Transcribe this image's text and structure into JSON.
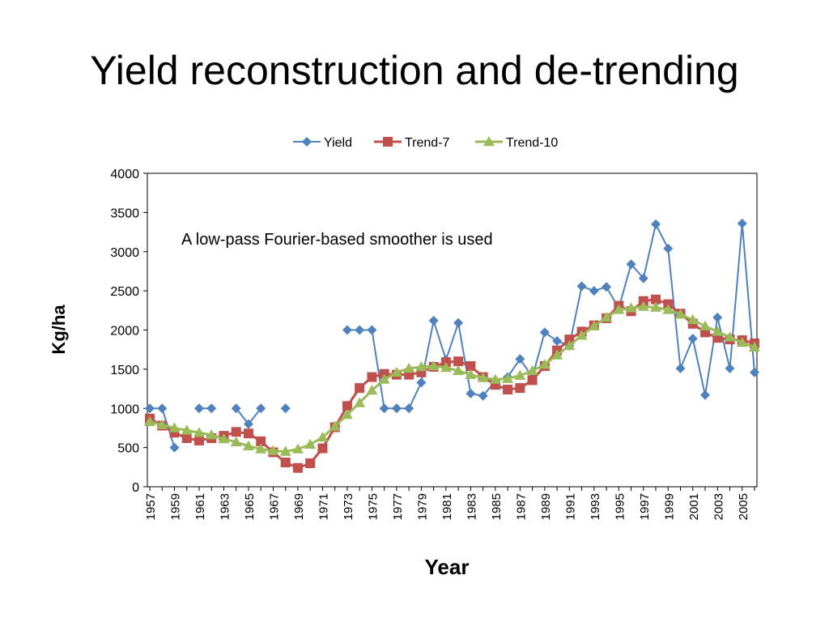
{
  "slide": {
    "title": "Yield reconstruction and de-trending"
  },
  "chart_data": {
    "type": "line",
    "xlabel": "Year",
    "ylabel": "Kg/ha",
    "annotation": "A low-pass Fourier-based smoother is used",
    "ylim": [
      0,
      4000
    ],
    "xlim": [
      1957,
      2006
    ],
    "yticks": [
      0,
      500,
      1000,
      1500,
      2000,
      2500,
      3000,
      3500,
      4000
    ],
    "xtick_labels": [
      "1957",
      "1959",
      "1961",
      "1963",
      "1965",
      "1967",
      "1969",
      "1971",
      "1973",
      "1975",
      "1977",
      "1979",
      "1981",
      "1983",
      "1985",
      "1987",
      "1989",
      "1991",
      "1993",
      "1995",
      "1997",
      "1999",
      "2001",
      "2003",
      "2005"
    ],
    "grid": false,
    "legend_position": "top",
    "series": [
      {
        "name": "Yield",
        "color": "#4f81bd",
        "marker": "diamond",
        "points": [
          [
            1957,
            1000
          ],
          [
            1958,
            1000
          ],
          [
            1959,
            500
          ],
          [
            1961,
            1000
          ],
          [
            1962,
            1000
          ],
          [
            1964,
            1000
          ],
          [
            1965,
            800
          ],
          [
            1966,
            1000
          ],
          [
            1968,
            1000
          ],
          [
            1973,
            2000
          ],
          [
            1974,
            2000
          ],
          [
            1975,
            2000
          ],
          [
            1976,
            1000
          ],
          [
            1977,
            1000
          ],
          [
            1978,
            1000
          ],
          [
            1979,
            1330
          ],
          [
            1980,
            2120
          ],
          [
            1981,
            1620
          ],
          [
            1982,
            2090
          ],
          [
            1983,
            1190
          ],
          [
            1984,
            1160
          ],
          [
            1985,
            1350
          ],
          [
            1986,
            1400
          ],
          [
            1987,
            1630
          ],
          [
            1988,
            1400
          ],
          [
            1989,
            1970
          ],
          [
            1990,
            1860
          ],
          [
            1991,
            1800
          ],
          [
            1992,
            2560
          ],
          [
            1993,
            2500
          ],
          [
            1994,
            2550
          ],
          [
            1995,
            2280
          ],
          [
            1996,
            2840
          ],
          [
            1997,
            2660
          ],
          [
            1998,
            3350
          ],
          [
            1999,
            3040
          ],
          [
            2000,
            1510
          ],
          [
            2001,
            1890
          ],
          [
            2002,
            1170
          ],
          [
            2003,
            2160
          ],
          [
            2004,
            1510
          ],
          [
            2005,
            3360
          ],
          [
            2006,
            1460
          ]
        ]
      },
      {
        "name": "Trend-7",
        "color": "#c0504d",
        "marker": "square",
        "points": [
          [
            1957,
            870
          ],
          [
            1958,
            780
          ],
          [
            1959,
            690
          ],
          [
            1960,
            620
          ],
          [
            1961,
            590
          ],
          [
            1962,
            620
          ],
          [
            1963,
            650
          ],
          [
            1964,
            700
          ],
          [
            1965,
            680
          ],
          [
            1966,
            580
          ],
          [
            1967,
            440
          ],
          [
            1968,
            310
          ],
          [
            1969,
            240
          ],
          [
            1970,
            300
          ],
          [
            1971,
            490
          ],
          [
            1972,
            760
          ],
          [
            1973,
            1030
          ],
          [
            1974,
            1260
          ],
          [
            1975,
            1400
          ],
          [
            1976,
            1440
          ],
          [
            1977,
            1430
          ],
          [
            1978,
            1430
          ],
          [
            1979,
            1460
          ],
          [
            1980,
            1530
          ],
          [
            1981,
            1590
          ],
          [
            1982,
            1600
          ],
          [
            1983,
            1540
          ],
          [
            1984,
            1400
          ],
          [
            1985,
            1300
          ],
          [
            1986,
            1240
          ],
          [
            1987,
            1260
          ],
          [
            1988,
            1360
          ],
          [
            1989,
            1540
          ],
          [
            1990,
            1740
          ],
          [
            1991,
            1880
          ],
          [
            1992,
            1980
          ],
          [
            1993,
            2060
          ],
          [
            1994,
            2150
          ],
          [
            1995,
            2310
          ],
          [
            1996,
            2240
          ],
          [
            1997,
            2370
          ],
          [
            1998,
            2390
          ],
          [
            1999,
            2330
          ],
          [
            2000,
            2210
          ],
          [
            2001,
            2080
          ],
          [
            2002,
            1970
          ],
          [
            2003,
            1900
          ],
          [
            2004,
            1880
          ],
          [
            2005,
            1870
          ],
          [
            2006,
            1830
          ]
        ]
      },
      {
        "name": "Trend-10",
        "color": "#9bbb59",
        "marker": "triangle",
        "points": [
          [
            1957,
            830
          ],
          [
            1958,
            790
          ],
          [
            1959,
            750
          ],
          [
            1960,
            720
          ],
          [
            1961,
            690
          ],
          [
            1962,
            660
          ],
          [
            1963,
            610
          ],
          [
            1964,
            570
          ],
          [
            1965,
            520
          ],
          [
            1966,
            480
          ],
          [
            1967,
            460
          ],
          [
            1968,
            450
          ],
          [
            1969,
            480
          ],
          [
            1970,
            540
          ],
          [
            1971,
            630
          ],
          [
            1972,
            770
          ],
          [
            1973,
            920
          ],
          [
            1974,
            1070
          ],
          [
            1975,
            1230
          ],
          [
            1976,
            1370
          ],
          [
            1977,
            1460
          ],
          [
            1978,
            1510
          ],
          [
            1979,
            1530
          ],
          [
            1980,
            1540
          ],
          [
            1981,
            1520
          ],
          [
            1982,
            1480
          ],
          [
            1983,
            1430
          ],
          [
            1984,
            1390
          ],
          [
            1985,
            1370
          ],
          [
            1986,
            1380
          ],
          [
            1987,
            1420
          ],
          [
            1988,
            1480
          ],
          [
            1989,
            1560
          ],
          [
            1990,
            1680
          ],
          [
            1991,
            1800
          ],
          [
            1992,
            1930
          ],
          [
            1993,
            2050
          ],
          [
            1994,
            2160
          ],
          [
            1995,
            2260
          ],
          [
            1996,
            2280
          ],
          [
            1997,
            2300
          ],
          [
            1998,
            2290
          ],
          [
            1999,
            2260
          ],
          [
            2000,
            2200
          ],
          [
            2001,
            2130
          ],
          [
            2002,
            2050
          ],
          [
            2003,
            1980
          ],
          [
            2004,
            1910
          ],
          [
            2005,
            1840
          ],
          [
            2006,
            1780
          ]
        ]
      }
    ]
  }
}
